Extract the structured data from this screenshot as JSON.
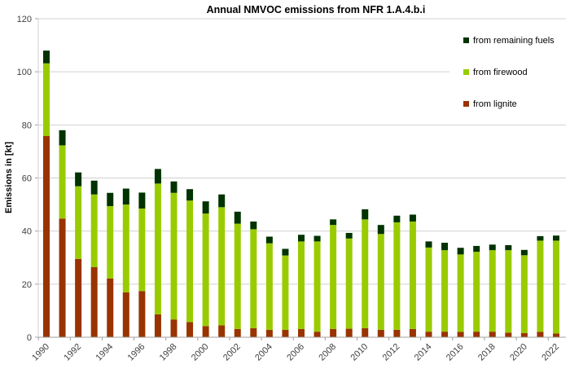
{
  "chart_data": {
    "type": "bar",
    "stacked": true,
    "title": "Annual NMVOC emissions from NFR 1.A.4.b.i",
    "xlabel": "",
    "ylabel": "Emissions in [kt]",
    "ylim": [
      0,
      120
    ],
    "yticks": [
      0,
      20,
      40,
      60,
      80,
      100,
      120
    ],
    "grid": true,
    "legend_position": "top-right",
    "categories": [
      "1990",
      "1991",
      "1992",
      "1993",
      "1994",
      "1995",
      "1996",
      "1997",
      "1998",
      "1999",
      "2000",
      "2001",
      "2002",
      "2003",
      "2004",
      "2005",
      "2006",
      "2007",
      "2008",
      "2009",
      "2010",
      "2011",
      "2012",
      "2013",
      "2014",
      "2015",
      "2016",
      "2017",
      "2018",
      "2019",
      "2020",
      "2021",
      "2022"
    ],
    "xtick_labels": [
      "1990",
      "1992",
      "1994",
      "1996",
      "1998",
      "2000",
      "2002",
      "2004",
      "2006",
      "2008",
      "2010",
      "2012",
      "2014",
      "2016",
      "2018",
      "2020",
      "2022"
    ],
    "series": [
      {
        "name": "from lignite",
        "color": "#993300",
        "values": [
          75.8,
          44.7,
          29.5,
          26.4,
          22.1,
          16.9,
          17.4,
          8.6,
          6.7,
          5.7,
          4.2,
          4.5,
          3.1,
          3.4,
          2.8,
          2.8,
          3.1,
          2.1,
          3.1,
          3.2,
          3.4,
          2.8,
          2.8,
          3.1,
          2.1,
          2.1,
          2.0,
          2.1,
          2.1,
          1.7,
          1.6,
          2.0,
          1.4
        ]
      },
      {
        "name": "from firewood",
        "color": "#99CC00",
        "values": [
          27.4,
          27.6,
          27.4,
          27.4,
          27.3,
          33.1,
          31.1,
          49.3,
          47.7,
          45.8,
          42.4,
          44.5,
          39.7,
          37.3,
          32.6,
          28.0,
          33.0,
          34.0,
          39.2,
          34.0,
          41.0,
          36.1,
          40.5,
          40.5,
          31.7,
          30.7,
          29.2,
          30.1,
          30.7,
          31.1,
          29.3,
          34.4,
          35.0
        ]
      },
      {
        "name": "from remaining fuels",
        "color": "#003300",
        "values": [
          4.8,
          5.7,
          5.2,
          5.2,
          5.0,
          6.0,
          6.0,
          5.5,
          4.3,
          4.3,
          4.6,
          4.8,
          4.5,
          2.9,
          2.5,
          2.5,
          2.5,
          2.1,
          2.1,
          2.1,
          3.8,
          3.4,
          2.5,
          2.6,
          2.3,
          2.8,
          2.5,
          2.2,
          2.1,
          1.9,
          2.0,
          1.7,
          1.9
        ]
      }
    ],
    "legend": [
      {
        "label": "from remaining fuels",
        "color": "#003300"
      },
      {
        "label": "from firewood",
        "color": "#99CC00"
      },
      {
        "label": "from lignite",
        "color": "#993300"
      }
    ]
  }
}
